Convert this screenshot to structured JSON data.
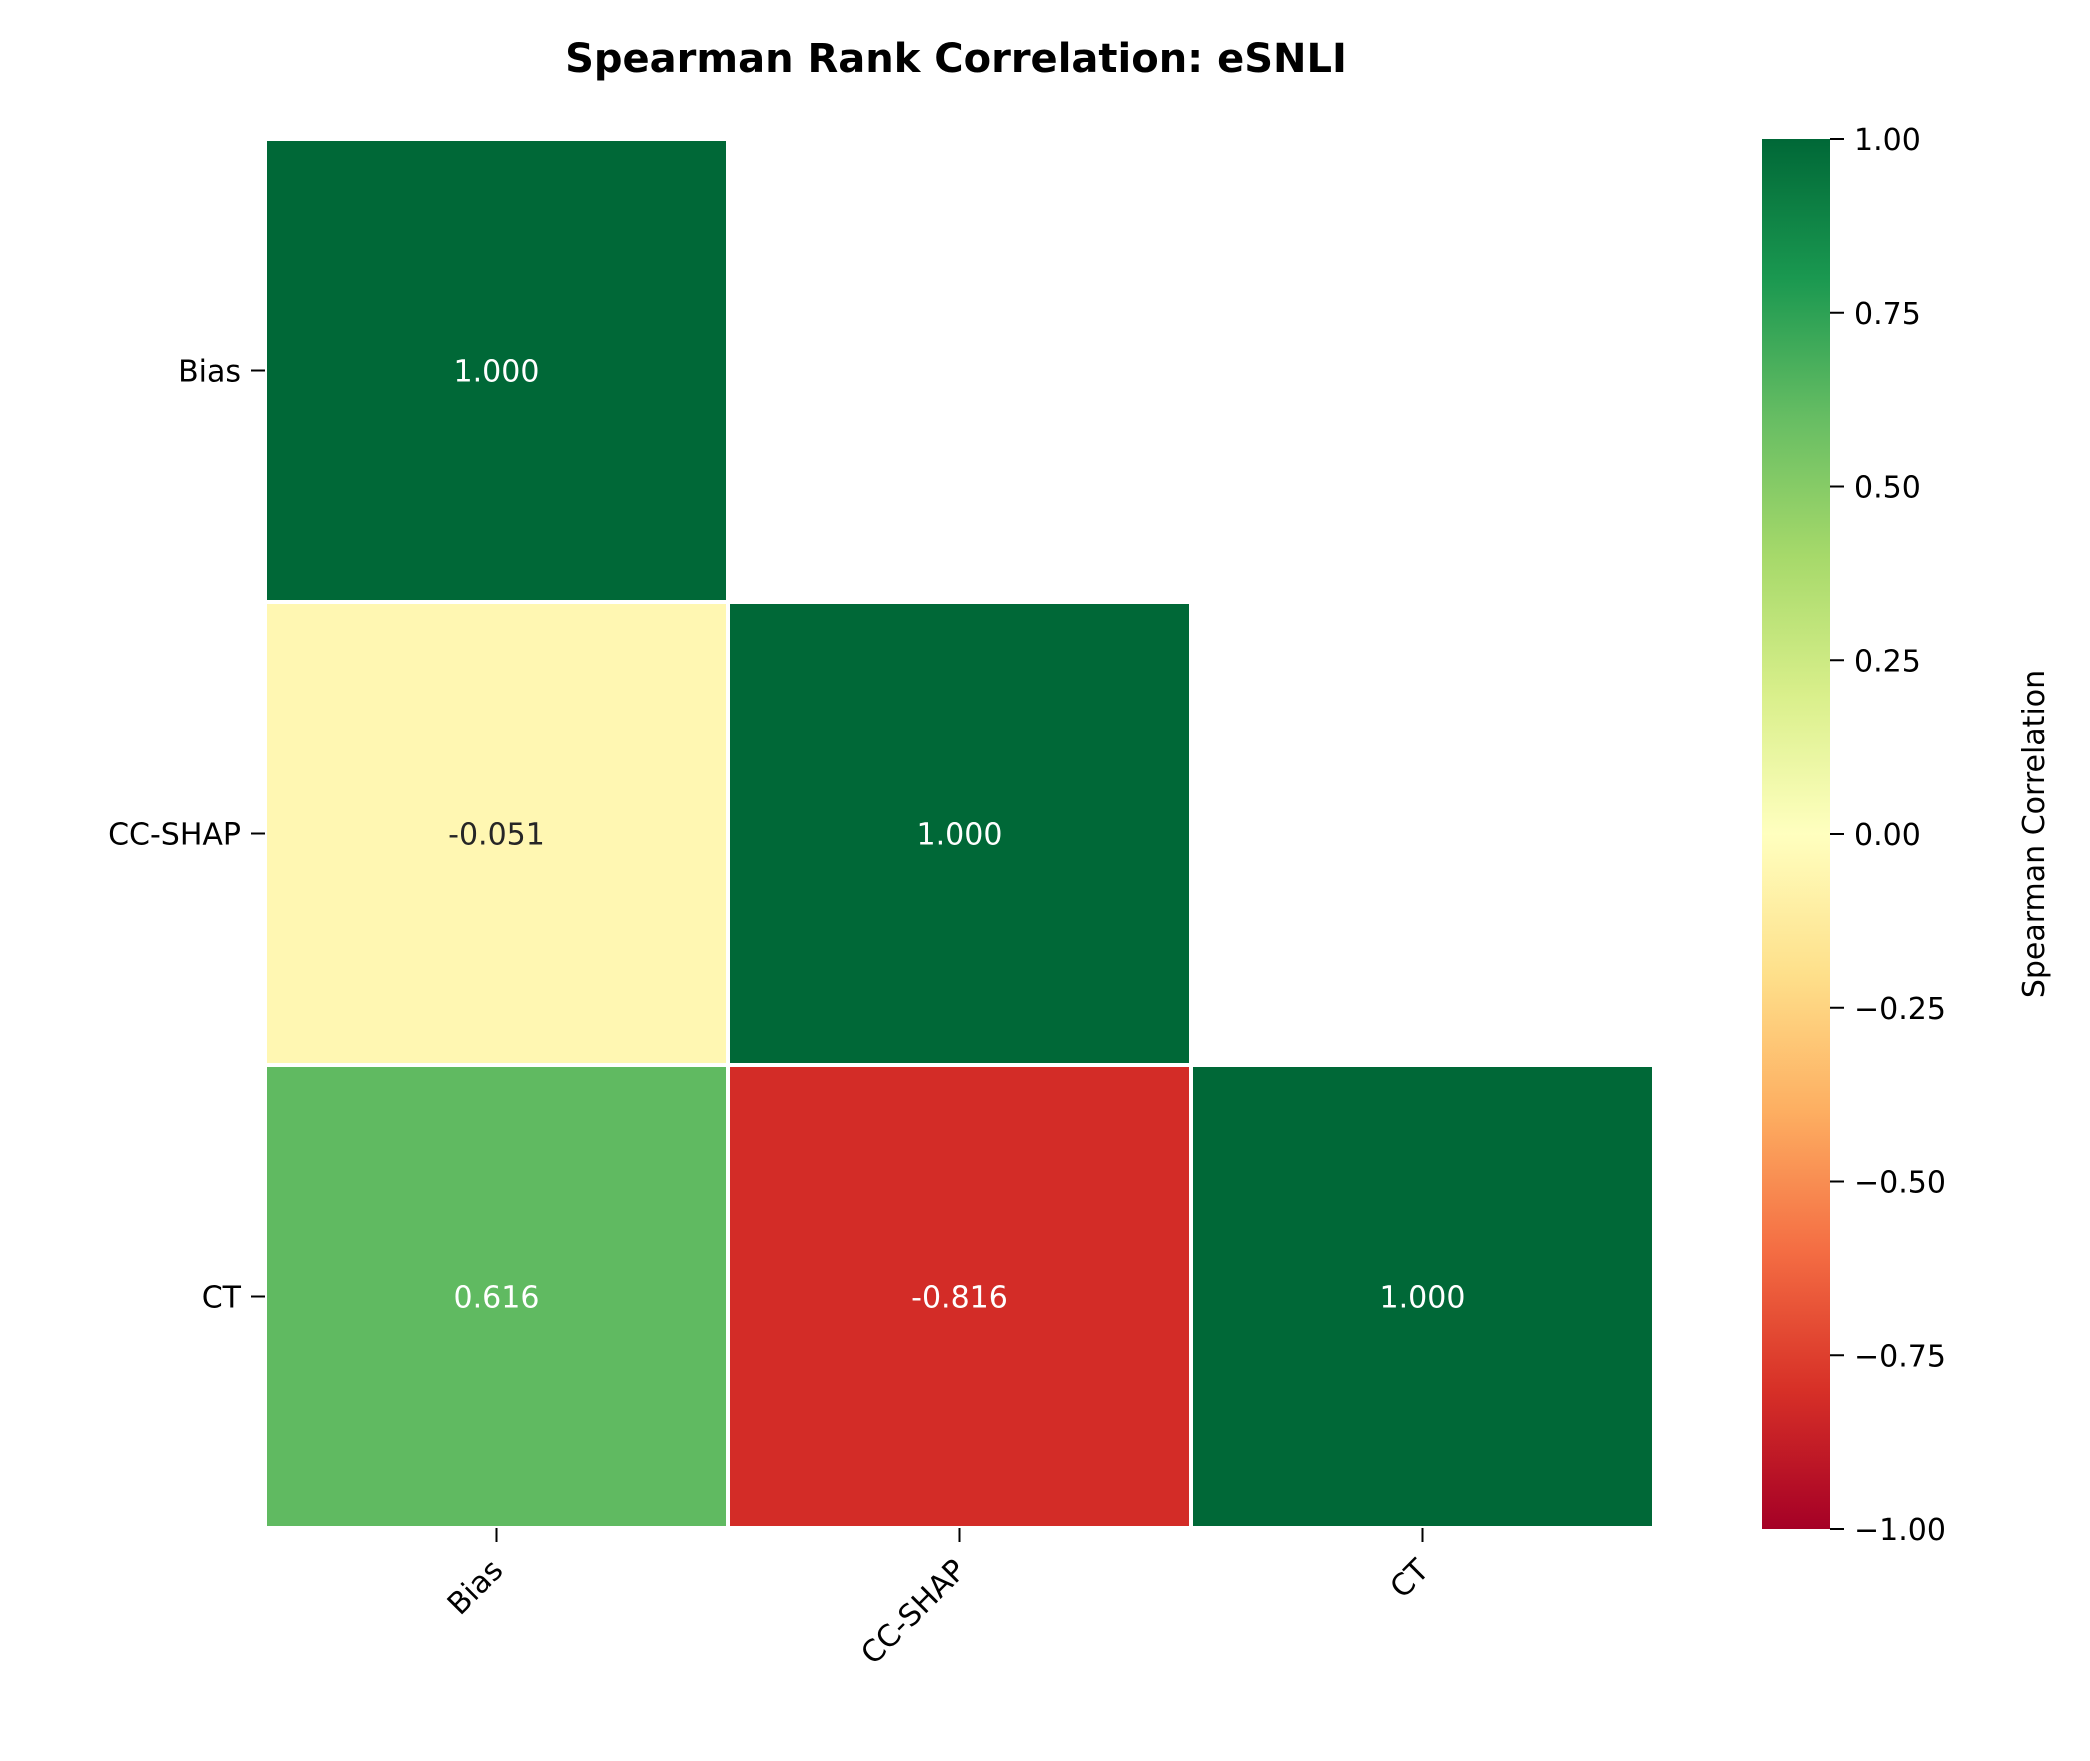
{
  "chart_data": {
    "type": "heatmap",
    "title": "Spearman Rank Correlation: eSNLI",
    "row_labels": [
      "Bias",
      "CC-SHAP",
      "CT"
    ],
    "col_labels": [
      "Bias",
      "CC-SHAP",
      "CT"
    ],
    "mask": "upper-triangle",
    "cells": [
      {
        "row": 0,
        "col": 0,
        "value": 1.0,
        "label": "1.000"
      },
      {
        "row": 1,
        "col": 0,
        "value": -0.051,
        "label": "-0.051"
      },
      {
        "row": 1,
        "col": 1,
        "value": 1.0,
        "label": "1.000"
      },
      {
        "row": 2,
        "col": 0,
        "value": 0.616,
        "label": "0.616"
      },
      {
        "row": 2,
        "col": 1,
        "value": -0.816,
        "label": "-0.816"
      },
      {
        "row": 2,
        "col": 2,
        "value": 1.0,
        "label": "1.000"
      }
    ],
    "colorbar": {
      "label": "Spearman Correlation",
      "range": [
        -1,
        1
      ],
      "ticks": [
        1.0,
        0.75,
        0.5,
        0.25,
        0.0,
        -0.25,
        -0.5,
        -0.75,
        -1.0
      ],
      "tick_labels": [
        "1.00",
        "0.75",
        "0.50",
        "0.25",
        "0.00",
        "−0.25",
        "−0.50",
        "−0.75",
        "−1.00"
      ],
      "colormap": "RdYlGn"
    },
    "colors": {
      "cmap_stops": [
        "#a50026",
        "#d73027",
        "#f46d43",
        "#fdae61",
        "#fee08b",
        "#ffffbf",
        "#d9ef8b",
        "#a6d96a",
        "#66bd63",
        "#1a9850",
        "#006837"
      ],
      "cell_border": "#ffffff",
      "text_light": "#ffffff",
      "text_dark": "#262626"
    }
  }
}
